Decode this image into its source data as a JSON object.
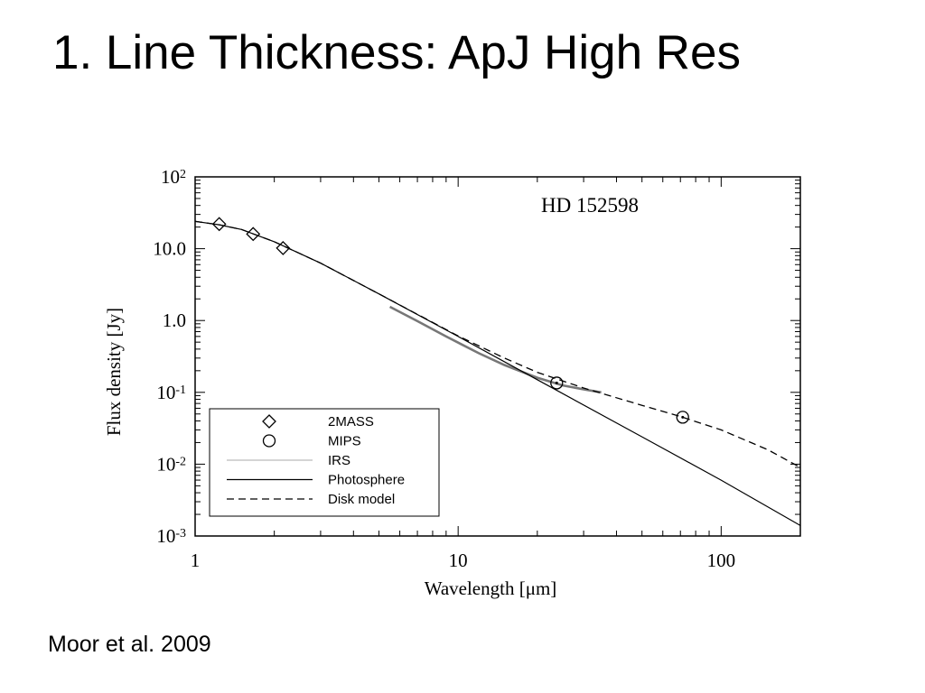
{
  "slide": {
    "title": "1. Line Thickness: ApJ High Res",
    "caption": "Moor et al. 2009"
  },
  "chart_data": {
    "type": "line",
    "title": "HD 152598",
    "xlabel": "Wavelength  [μm]",
    "ylabel": "Flux density [Jy]",
    "xscale": "log",
    "yscale": "log",
    "xlim": [
      1,
      200
    ],
    "ylim": [
      0.001,
      100
    ],
    "grid": false,
    "legend_position": "bottom-left",
    "x_tick_labels": [
      {
        "value": 1,
        "label": "1"
      },
      {
        "value": 10,
        "label": "10"
      },
      {
        "value": 100,
        "label": "100"
      }
    ],
    "y_tick_labels": [
      {
        "value": 100,
        "base": "10",
        "exp": "2"
      },
      {
        "value": 10,
        "base": "10.0",
        "exp": ""
      },
      {
        "value": 1,
        "base": "1.0",
        "exp": ""
      },
      {
        "value": 0.1,
        "base": "10",
        "exp": "-1"
      },
      {
        "value": 0.01,
        "base": "10",
        "exp": "-2"
      },
      {
        "value": 0.001,
        "base": "10",
        "exp": "-3"
      }
    ],
    "series": [
      {
        "name": "2MASS",
        "kind": "marker",
        "marker": "diamond",
        "x": [
          1.235,
          1.662,
          2.159
        ],
        "y": [
          22,
          16,
          10.2
        ]
      },
      {
        "name": "MIPS",
        "kind": "marker",
        "marker": "circle-dot",
        "x": [
          23.7,
          71.4
        ],
        "y": [
          0.135,
          0.045
        ]
      },
      {
        "name": "IRS",
        "kind": "line",
        "style": "gray",
        "x": [
          5.5,
          7,
          9,
          12,
          15,
          20,
          25,
          30,
          35
        ],
        "y": [
          1.55,
          0.98,
          0.6,
          0.35,
          0.24,
          0.16,
          0.125,
          0.11,
          0.1
        ]
      },
      {
        "name": "Photosphere",
        "kind": "line",
        "style": "solid",
        "x": [
          1,
          1.235,
          1.5,
          2,
          3,
          5,
          10,
          20,
          50,
          100,
          200
        ],
        "y": [
          24,
          21.5,
          18.5,
          12.5,
          6.3,
          2.35,
          0.6,
          0.15,
          0.024,
          0.006,
          0.0014
        ]
      },
      {
        "name": "Disk model",
        "kind": "line",
        "style": "dashed",
        "x": [
          1,
          1.235,
          1.5,
          2,
          3,
          5,
          10,
          15,
          20,
          30,
          50,
          70,
          100,
          150,
          200
        ],
        "y": [
          24,
          21.5,
          18.5,
          12.5,
          6.3,
          2.35,
          0.61,
          0.3,
          0.19,
          0.115,
          0.066,
          0.046,
          0.03,
          0.016,
          0.009
        ]
      }
    ]
  }
}
